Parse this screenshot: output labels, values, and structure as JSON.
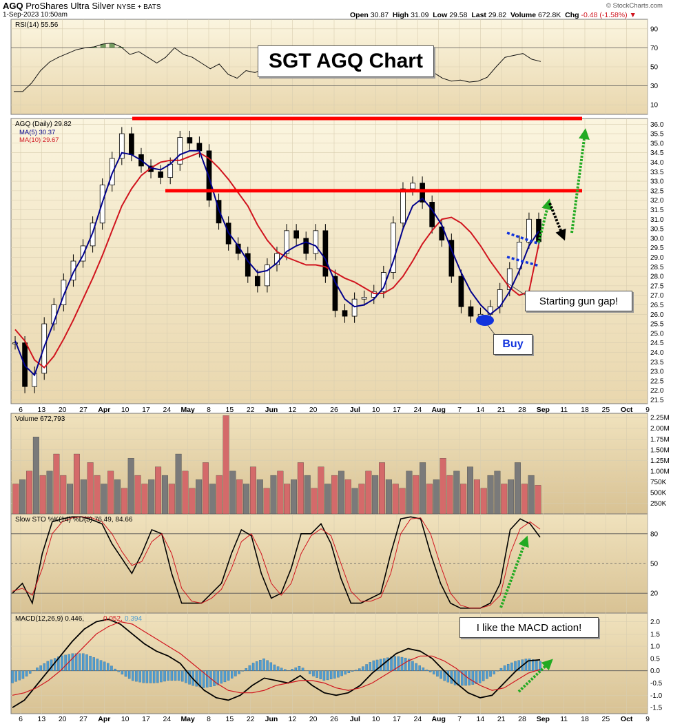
{
  "header": {
    "symbol": "AGQ",
    "name": "ProShares Ultra Silver",
    "exchange": "NYSE + BATS",
    "date": "1-Sep-2023 10:50am",
    "open_label": "Open",
    "open": "30.87",
    "high_label": "High",
    "high": "31.09",
    "low_label": "Low",
    "low": "29.58",
    "last_label": "Last",
    "last": "29.82",
    "volume_label": "Volume",
    "volume": "672.8K",
    "chg_label": "Chg",
    "chg": "-0.48 (-1.58%)",
    "watermark": "© StockCharts.com"
  },
  "colors": {
    "panel_bg": "#f7efd2",
    "panel_bg_dark": "#dcc8a0",
    "ma5": "#00008b",
    "ma10": "#d0141e",
    "resistance": "#ff0000",
    "green_arrow": "#22aa22",
    "blue_marker": "#1133dd",
    "volume_up": "#d46a6a",
    "volume_down": "#7a7a7a",
    "macd_hist": "#4f9cd0"
  },
  "annotations": {
    "title": "SGT AGQ Chart",
    "gap": "Starting gun gap!",
    "buy": "Buy",
    "macd": "I like the MACD action!"
  },
  "chart_data": [
    {
      "type": "line",
      "panel": "rsi",
      "legend": "RSI(14) 55.56",
      "y_ticks": [
        90,
        70,
        50,
        30,
        10
      ],
      "ylim": [
        0,
        100
      ],
      "guide_levels": [
        70,
        30
      ],
      "series": [
        {
          "name": "RSI(14)",
          "values": [
            24,
            24,
            33,
            46,
            55,
            60,
            64,
            68,
            70,
            71,
            74,
            75,
            71,
            63,
            66,
            60,
            54,
            60,
            70,
            63,
            60,
            54,
            48,
            53,
            42,
            38,
            46,
            44,
            48,
            50,
            54,
            48,
            53,
            58,
            63,
            55,
            48,
            43,
            41,
            47,
            44,
            41,
            48,
            58,
            66,
            64,
            58,
            44,
            38,
            35,
            36,
            34,
            35,
            39,
            50,
            60,
            62,
            64,
            58,
            55.56
          ]
        }
      ]
    },
    {
      "type": "candlestick",
      "panel": "price",
      "legend": [
        "AGQ (Daily) 29.82",
        "MA(5) 30.37",
        "MA(10) 29.67"
      ],
      "y_ticks": [
        36.0,
        35.5,
        35.0,
        34.5,
        34.0,
        33.5,
        33.0,
        32.5,
        32.0,
        31.5,
        31.0,
        30.5,
        30.0,
        29.5,
        29.0,
        28.5,
        28.0,
        27.5,
        27.0,
        26.5,
        26.0,
        25.5,
        25.0,
        24.5,
        24.0,
        23.5,
        23.0,
        22.5,
        22.0,
        21.5
      ],
      "ylim": [
        21.3,
        36.3
      ],
      "x_ticks": [
        "6",
        "13",
        "20",
        "27",
        "Apr",
        "10",
        "17",
        "24",
        "May",
        "8",
        "15",
        "22",
        "Jun",
        "12",
        "20",
        "26",
        "Jul",
        "10",
        "17",
        "24",
        "Aug",
        "7",
        "14",
        "21",
        "28",
        "Sep",
        "11",
        "18",
        "25",
        "Oct",
        "9"
      ],
      "close": [
        24.5,
        22.2,
        22.9,
        25.5,
        26.5,
        27.8,
        28.8,
        29.6,
        30.8,
        32.8,
        34.2,
        35.5,
        34.4,
        33.8,
        33.5,
        33.2,
        33.9,
        35.3,
        35.0,
        34.6,
        32.0,
        30.8,
        29.7,
        29.2,
        28.0,
        27.5,
        28.6,
        29.2,
        30.4,
        30.0,
        29.2,
        30.4,
        28.0,
        26.2,
        25.9,
        26.8,
        26.9,
        27.2,
        28.2,
        30.8,
        32.6,
        32.9,
        31.9,
        30.6,
        29.9,
        28.0,
        26.4,
        25.9,
        26.0,
        26.4,
        27.3,
        28.4,
        29.8,
        31.0,
        29.82
      ],
      "ma5": [
        24.6,
        23.3,
        22.8,
        24.3,
        25.6,
        27.0,
        28.2,
        29.1,
        30.3,
        31.9,
        33.4,
        34.5,
        34.4,
        34.1,
        33.7,
        33.6,
        33.9,
        34.4,
        34.6,
        34.6,
        33.2,
        31.5,
        30.3,
        29.6,
        28.8,
        28.2,
        28.3,
        28.7,
        29.3,
        29.6,
        29.8,
        29.6,
        28.9,
        27.7,
        26.8,
        26.4,
        26.5,
        26.8,
        27.4,
        28.8,
        30.5,
        31.7,
        32.1,
        31.5,
        30.7,
        29.4,
        28.2,
        27.2,
        26.5,
        26.0,
        26.4,
        27.2,
        28.3,
        29.6,
        30.37
      ],
      "ma10": [
        25.2,
        24.6,
        23.6,
        23.2,
        23.8,
        24.7,
        25.7,
        26.8,
        27.9,
        29.1,
        30.4,
        31.7,
        32.6,
        33.3,
        33.7,
        34.0,
        34.1,
        34.1,
        34.3,
        34.5,
        34.2,
        33.7,
        33.1,
        32.4,
        31.7,
        30.7,
        29.9,
        29.3,
        29.0,
        28.8,
        28.6,
        28.6,
        28.5,
        28.2,
        27.9,
        27.7,
        27.4,
        27.1,
        27.1,
        27.4,
        28.0,
        28.8,
        29.7,
        30.4,
        31.0,
        31.1,
        30.8,
        30.3,
        29.6,
        28.8,
        28.1,
        27.4,
        27.0,
        27.2,
        29.67
      ],
      "resistance_levels": [
        36.3,
        32.5
      ]
    },
    {
      "type": "bar",
      "panel": "volume",
      "legend": "Volume 672,793",
      "y_ticks": [
        "2.25M",
        "2.00M",
        "1.75M",
        "1.50M",
        "1.25M",
        "1.00M",
        "750K",
        "500K",
        "250K"
      ],
      "y_tick_values": [
        2.25,
        2.0,
        1.75,
        1.5,
        1.25,
        1.0,
        0.75,
        0.5,
        0.25
      ],
      "ylim": [
        0,
        2.35
      ],
      "unit": "M",
      "values": [
        0.7,
        0.8,
        1.0,
        1.8,
        0.9,
        1.0,
        1.4,
        0.9,
        0.7,
        1.4,
        0.8,
        1.2,
        0.9,
        0.7,
        1.0,
        0.8,
        0.6,
        1.3,
        0.9,
        0.7,
        0.8,
        1.1,
        0.9,
        0.7,
        1.4,
        1.0,
        0.6,
        0.8,
        1.2,
        0.7,
        0.9,
        2.3,
        1.0,
        0.8,
        0.7,
        1.1,
        0.8,
        0.6,
        0.9,
        1.0,
        0.7,
        0.8,
        1.2,
        0.9,
        0.6,
        1.1,
        0.7,
        0.9,
        1.0,
        0.8,
        0.6,
        0.7,
        1.0,
        0.9,
        1.2,
        0.8,
        0.7,
        0.6,
        1.0,
        0.9,
        1.2,
        0.7,
        0.8,
        1.3,
        0.9,
        1.0,
        0.7,
        1.1,
        0.8,
        0.6,
        0.9,
        1.0,
        0.7,
        0.8,
        1.2,
        0.7,
        0.9,
        0.67
      ],
      "up": [
        true,
        false,
        true,
        false,
        true,
        false,
        true,
        true,
        false,
        true,
        false,
        true,
        true,
        false,
        true,
        false,
        true,
        false,
        true,
        true,
        false,
        true,
        false,
        true,
        false,
        true,
        true,
        false,
        true,
        false,
        true,
        true,
        false,
        true,
        false,
        true,
        false,
        true,
        false,
        true,
        true,
        false,
        true,
        false,
        true,
        true,
        false,
        true,
        false,
        true,
        false,
        true,
        true,
        false,
        true,
        false,
        true,
        true,
        false,
        true,
        false,
        true,
        false,
        true,
        true,
        false,
        true,
        false,
        true,
        true,
        false,
        false,
        true,
        false,
        false,
        true,
        false,
        true
      ]
    },
    {
      "type": "line",
      "panel": "stochastic",
      "legend": "Slow STO %K(14) %D(3) 76.49, 84.66",
      "y_ticks": [
        80,
        50,
        20
      ],
      "ylim": [
        0,
        100
      ],
      "guide_levels": [
        80,
        50,
        20
      ],
      "series": [
        {
          "name": "%K(14)",
          "values": [
            20,
            30,
            10,
            60,
            92,
            95,
            97,
            97,
            94,
            90,
            70,
            55,
            40,
            60,
            84,
            80,
            40,
            10,
            10,
            10,
            20,
            30,
            60,
            84,
            78,
            40,
            15,
            20,
            45,
            80,
            80,
            90,
            70,
            35,
            10,
            10,
            15,
            20,
            60,
            95,
            97,
            95,
            60,
            30,
            10,
            5,
            5,
            5,
            10,
            30,
            84,
            95,
            90,
            76.49
          ]
        },
        {
          "name": "%D(3)",
          "values": [
            22,
            25,
            18,
            45,
            80,
            92,
            96,
            97,
            96,
            92,
            80,
            62,
            48,
            52,
            72,
            80,
            60,
            25,
            12,
            10,
            15,
            24,
            45,
            72,
            80,
            60,
            30,
            18,
            30,
            60,
            78,
            85,
            78,
            50,
            22,
            12,
            12,
            16,
            40,
            80,
            95,
            96,
            80,
            48,
            20,
            8,
            5,
            5,
            8,
            18,
            60,
            85,
            92,
            84.66
          ]
        }
      ]
    },
    {
      "type": "line",
      "panel": "macd",
      "legend": [
        "MACD(12,26,9) 0.446,",
        "0.052,",
        "0.394"
      ],
      "y_ticks": [
        2.0,
        1.5,
        1.0,
        0.5,
        0.0,
        -0.5,
        -1.0,
        -1.5
      ],
      "ylim": [
        -1.75,
        2.35
      ],
      "series": [
        {
          "name": "MACD(12,26,9)",
          "values": [
            -1.5,
            -1.2,
            -0.6,
            0.0,
            0.6,
            1.2,
            1.7,
            2.0,
            2.1,
            1.9,
            1.5,
            1.1,
            0.8,
            0.6,
            0.3,
            -0.3,
            -0.8,
            -1.1,
            -1.2,
            -1.0,
            -0.6,
            -0.3,
            -0.4,
            -0.5,
            -0.2,
            -0.6,
            -0.9,
            -1.0,
            -0.9,
            -0.6,
            -0.1,
            0.3,
            0.7,
            0.9,
            0.8,
            0.5,
            0.0,
            -0.5,
            -0.9,
            -1.1,
            -1.0,
            -0.5,
            0.0,
            0.4,
            0.446
          ]
        },
        {
          "name": "signal",
          "values": [
            -1.0,
            -0.9,
            -0.7,
            -0.4,
            0.0,
            0.5,
            1.0,
            1.5,
            1.8,
            2.0,
            1.9,
            1.6,
            1.3,
            1.0,
            0.7,
            0.3,
            -0.1,
            -0.5,
            -0.8,
            -0.9,
            -0.9,
            -0.8,
            -0.6,
            -0.5,
            -0.4,
            -0.4,
            -0.5,
            -0.7,
            -0.8,
            -0.7,
            -0.5,
            -0.2,
            0.1,
            0.4,
            0.6,
            0.6,
            0.4,
            0.1,
            -0.3,
            -0.6,
            -0.8,
            -0.7,
            -0.4,
            -0.1,
            0.052
          ]
        },
        {
          "name": "histogram",
          "values": [
            -0.5,
            -0.3,
            0.1,
            0.4,
            0.6,
            0.7,
            0.7,
            0.5,
            0.3,
            -0.1,
            -0.4,
            -0.5,
            -0.5,
            -0.4,
            -0.4,
            -0.6,
            -0.7,
            -0.6,
            -0.4,
            -0.1,
            0.3,
            0.5,
            0.2,
            0.0,
            0.2,
            -0.2,
            -0.4,
            -0.3,
            -0.1,
            0.1,
            0.4,
            0.5,
            0.6,
            0.5,
            0.2,
            -0.1,
            -0.4,
            -0.6,
            -0.6,
            -0.5,
            -0.2,
            0.2,
            0.4,
            0.5,
            0.394
          ]
        }
      ]
    }
  ]
}
